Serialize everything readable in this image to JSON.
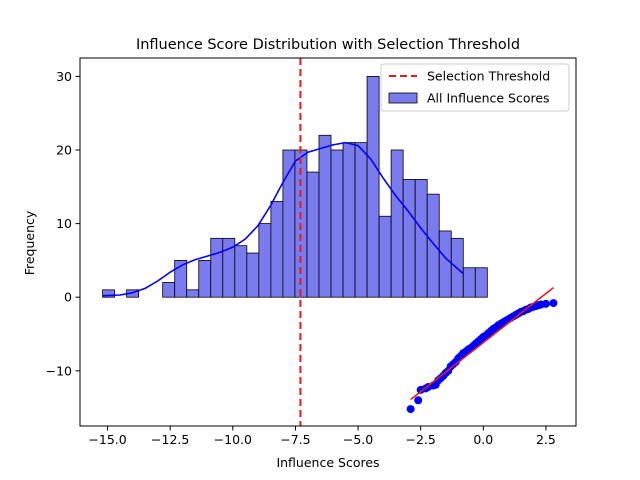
{
  "chart_data": {
    "type": "bar",
    "title": "Influence Score Distribution with Selection Threshold",
    "xlabel": "Influence Scores",
    "ylabel": "Frequency",
    "xlim": [
      -16.1,
      3.7
    ],
    "ylim": [
      -17.5,
      32.5
    ],
    "x_ticks": [
      -15.0,
      -12.5,
      -10.0,
      -7.5,
      -5.0,
      -2.5,
      0.0,
      2.5
    ],
    "x_tick_labels": [
      "−15.0",
      "−12.5",
      "−10.0",
      "−7.5",
      "−5.0",
      "−2.5",
      "0.0",
      "2.5"
    ],
    "y_ticks": [
      -10,
      0,
      10,
      20,
      30
    ],
    "y_tick_labels": [
      "−10",
      "0",
      "10",
      "20",
      "30"
    ],
    "legend_position": "top-right",
    "legend": [
      {
        "label": "Selection Threshold",
        "style": "dashed-line",
        "color": "#e41a1c"
      },
      {
        "label": "All Influence Scores",
        "style": "patch",
        "color": "#7b7bf0"
      }
    ],
    "histogram": {
      "name": "All Influence Scores",
      "color": "#7b7bf0",
      "edge_color": "#000000",
      "bin_start": -15.2,
      "bin_width": 0.48,
      "counts": [
        1,
        0,
        1,
        0,
        0,
        2,
        5,
        1,
        5,
        8,
        8,
        7,
        6,
        10,
        13,
        20,
        20,
        17,
        22,
        20,
        21,
        21,
        30,
        11,
        20,
        16,
        16,
        14,
        9,
        8,
        4,
        4
      ]
    },
    "kde": {
      "color": "#0000ff",
      "x": [
        -15.2,
        -14.5,
        -14.0,
        -13.5,
        -13.0,
        -12.5,
        -12.0,
        -11.5,
        -11.0,
        -10.5,
        -10.0,
        -9.5,
        -9.0,
        -8.5,
        -8.0,
        -7.5,
        -7.0,
        -6.5,
        -6.0,
        -5.5,
        -5.0,
        -4.5,
        -4.0,
        -3.5,
        -3.0,
        -2.5,
        -2.0,
        -1.5,
        -1.0,
        -0.8
      ],
      "y": [
        0.2,
        0.3,
        0.6,
        1.2,
        2.2,
        3.4,
        4.4,
        5.1,
        5.6,
        6.1,
        6.8,
        7.9,
        9.7,
        12.4,
        15.6,
        18.5,
        19.7,
        20.2,
        20.7,
        21.0,
        20.6,
        18.8,
        16.2,
        13.8,
        11.7,
        9.4,
        7.3,
        5.3,
        3.8,
        3.2
      ]
    },
    "threshold": {
      "name": "Selection Threshold",
      "x": -7.3,
      "color": "#e41a1c"
    },
    "qq_points": {
      "color": "#0000ff",
      "x": [
        -2.9,
        -2.6,
        -2.5,
        -2.3,
        -2.2,
        -2.0,
        -1.9,
        -1.8,
        -1.7,
        -1.6,
        -1.5,
        -1.4,
        -1.3,
        -1.2,
        -1.1,
        -1.0,
        -0.9,
        -0.8,
        -0.7,
        -0.6,
        -0.5,
        -0.4,
        -0.3,
        -0.2,
        -0.1,
        0.0,
        0.1,
        0.2,
        0.3,
        0.4,
        0.5,
        0.6,
        0.7,
        0.8,
        0.9,
        1.0,
        1.1,
        1.2,
        1.3,
        1.4,
        1.5,
        1.6,
        1.7,
        1.8,
        1.9,
        2.0,
        2.1,
        2.2,
        2.3,
        2.5,
        2.8
      ],
      "y": [
        -15.2,
        -14.0,
        -12.6,
        -12.4,
        -12.2,
        -12.0,
        -11.9,
        -11.3,
        -11.0,
        -10.7,
        -10.3,
        -10.0,
        -9.4,
        -9.1,
        -8.8,
        -8.3,
        -8.0,
        -7.6,
        -7.4,
        -7.1,
        -6.9,
        -6.6,
        -6.3,
        -6.0,
        -5.7,
        -5.4,
        -5.2,
        -4.9,
        -4.6,
        -4.3,
        -4.1,
        -3.8,
        -3.6,
        -3.4,
        -3.2,
        -3.0,
        -2.8,
        -2.6,
        -2.4,
        -2.2,
        -2.0,
        -1.9,
        -1.7,
        -1.6,
        -1.4,
        -1.3,
        -1.2,
        -1.1,
        -1.0,
        -0.9,
        -0.8
      ]
    },
    "qq_line": {
      "color": "#e41a1c",
      "x": [
        -2.9,
        2.8
      ],
      "y": [
        -13.9,
        1.3
      ]
    }
  }
}
